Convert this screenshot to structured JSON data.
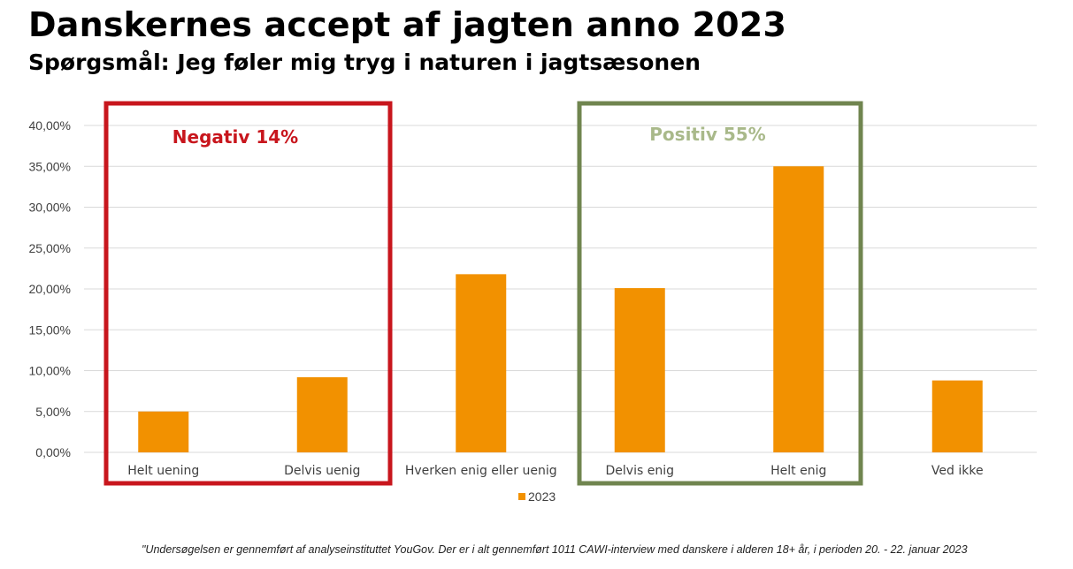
{
  "header": {
    "title": "Danskernes accept af jagten anno 2023",
    "subtitle": "Spørgsmål: Jeg føler mig tryg i naturen i jagtsæsonen"
  },
  "footnote": "\"Undersøgelsen er gennemført af analyseinstituttet YouGov. Der er i alt gennemført 1011 CAWI-interview med danskere i alderen 18+ år, i perioden 20. - 22. januar 2023",
  "colors": {
    "bar": "#F29100",
    "negative_box": "#C8161D",
    "positive_box": "#70854F",
    "positive_text": "#A9B98A",
    "grid": "#D9D9D9",
    "axis_text": "#404040"
  },
  "chart_data": {
    "type": "bar",
    "categories": [
      "Helt uening",
      "Delvis uenig",
      "Hverken enig eller uenig",
      "Delvis enig",
      "Helt enig",
      "Ved ikke"
    ],
    "series": [
      {
        "name": "2023",
        "values": [
          5.0,
          9.2,
          21.8,
          20.1,
          35.0,
          8.8
        ]
      }
    ],
    "ylim": [
      0,
      40
    ],
    "yticks": [
      0,
      5,
      10,
      15,
      20,
      25,
      30,
      35,
      40
    ],
    "ytick_labels": [
      "0,00%",
      "5,00%",
      "10,00%",
      "15,00%",
      "20,00%",
      "25,00%",
      "30,00%",
      "35,00%",
      "40,00%"
    ],
    "grid": true,
    "legend": {
      "position": "bottom",
      "entries": [
        "2023"
      ]
    },
    "annotations": [
      {
        "text": "Negativ 14%",
        "covers": [
          "Helt uening",
          "Delvis uenig"
        ],
        "style": "negative"
      },
      {
        "text": "Positiv 55%",
        "covers": [
          "Delvis enig",
          "Helt enig"
        ],
        "style": "positive"
      }
    ]
  }
}
